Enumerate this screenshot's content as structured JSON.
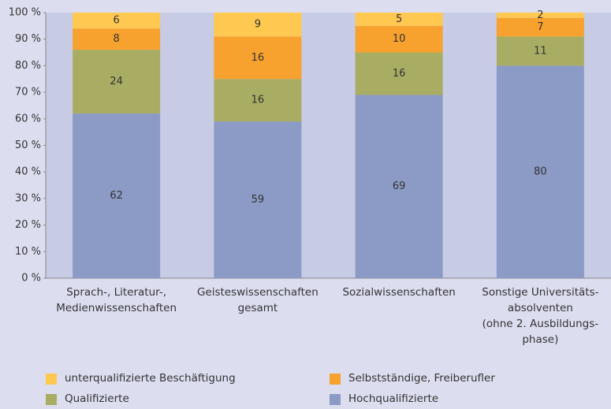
{
  "chart_data": {
    "type": "stacked_bar",
    "categories": [
      "Sprach-, Literatur-,\nMedienwissenschaften",
      "Geisteswissenschaften\ngesamt",
      "Sozialwissenschaften",
      "Sonstige Universitäts-\nabsolventen\n(ohne 2. Ausbildungs-\nphase)"
    ],
    "series": [
      {
        "name": "Hochqualifizierte",
        "color": "#8c9bc6",
        "values": [
          62,
          59,
          69,
          80
        ]
      },
      {
        "name": "Qualifizierte",
        "color": "#a9ad63",
        "values": [
          24,
          16,
          16,
          11
        ]
      },
      {
        "name": "Selbstständige, Freiberufler",
        "color": "#f7a12f",
        "values": [
          8,
          16,
          10,
          7
        ]
      },
      {
        "name": "unterqualifizierte Beschäftigung",
        "color": "#fec851",
        "values": [
          6,
          9,
          5,
          2
        ]
      }
    ],
    "ylim": [
      0,
      100
    ],
    "yticks": [
      {
        "value": 0,
        "label": "0 %"
      },
      {
        "value": 10,
        "label": "10 %"
      },
      {
        "value": 20,
        "label": "20 %"
      },
      {
        "value": 30,
        "label": "30 %"
      },
      {
        "value": 40,
        "label": "40 %"
      },
      {
        "value": 50,
        "label": "50 %"
      },
      {
        "value": 60,
        "label": "60 %"
      },
      {
        "value": 70,
        "label": "70 %"
      },
      {
        "value": 80,
        "label": "80 %"
      },
      {
        "value": 90,
        "label": "90 %"
      },
      {
        "value": 100,
        "label": "100 %"
      }
    ]
  }
}
